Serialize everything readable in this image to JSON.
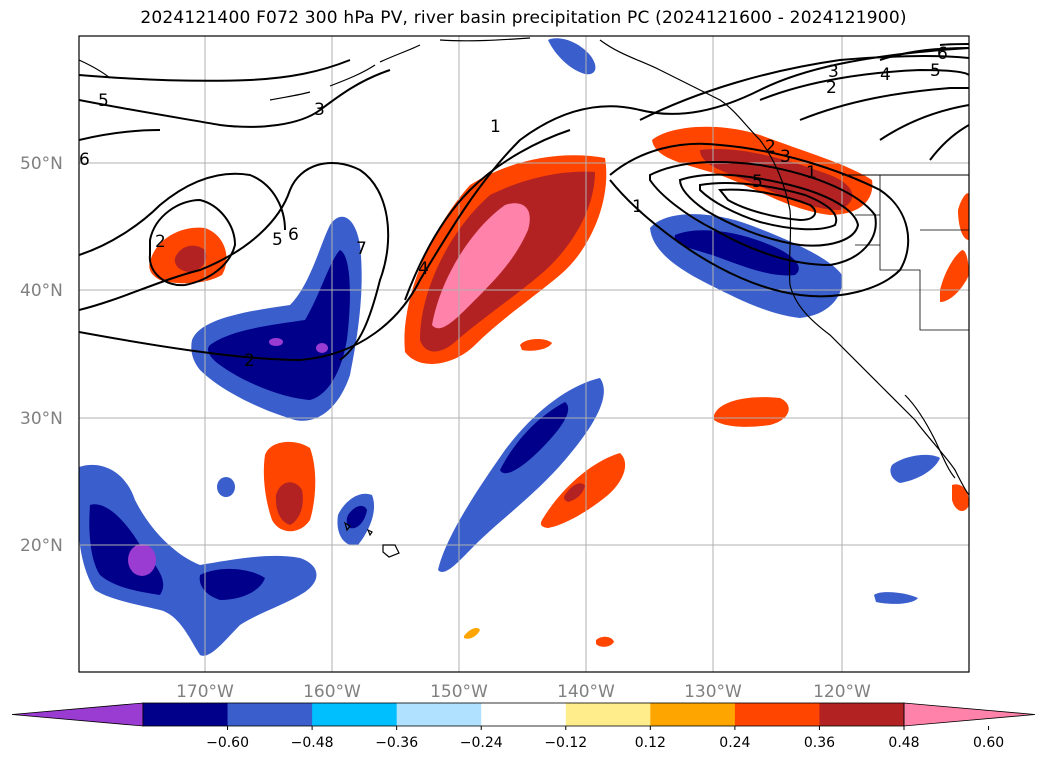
{
  "title": "2024121400 F072 300 hPa PV, river basin precipitation PC (2024121600 - 2024121900)",
  "map": {
    "lat_labels": [
      "50°N",
      "40°N",
      "30°N",
      "20°N"
    ],
    "lon_labels": [
      "170°W",
      "160°W",
      "150°W",
      "140°W",
      "130°W",
      "120°W"
    ],
    "gridline_color": "#b0b0b0"
  },
  "contour_labels": [
    "5",
    "3",
    "1",
    "2",
    "5",
    "6",
    "7",
    "4",
    "2",
    "1",
    "2",
    "3",
    "5",
    "3",
    "4",
    "5",
    "6",
    "2",
    "6",
    "1"
  ],
  "colorbar": {
    "colors": [
      "#9a3bd1",
      "#00008b",
      "#3a5fcd",
      "#00bfff",
      "#b0e2ff",
      "#ffffff",
      "#ffec8b",
      "#ffa500",
      "#ff4500",
      "#b22222",
      "#ff82ab"
    ],
    "tick_labels": [
      "−0.60",
      "−0.48",
      "−0.36",
      "−0.24",
      "−0.12",
      "0.12",
      "0.24",
      "0.36",
      "0.48",
      "0.60"
    ]
  }
}
